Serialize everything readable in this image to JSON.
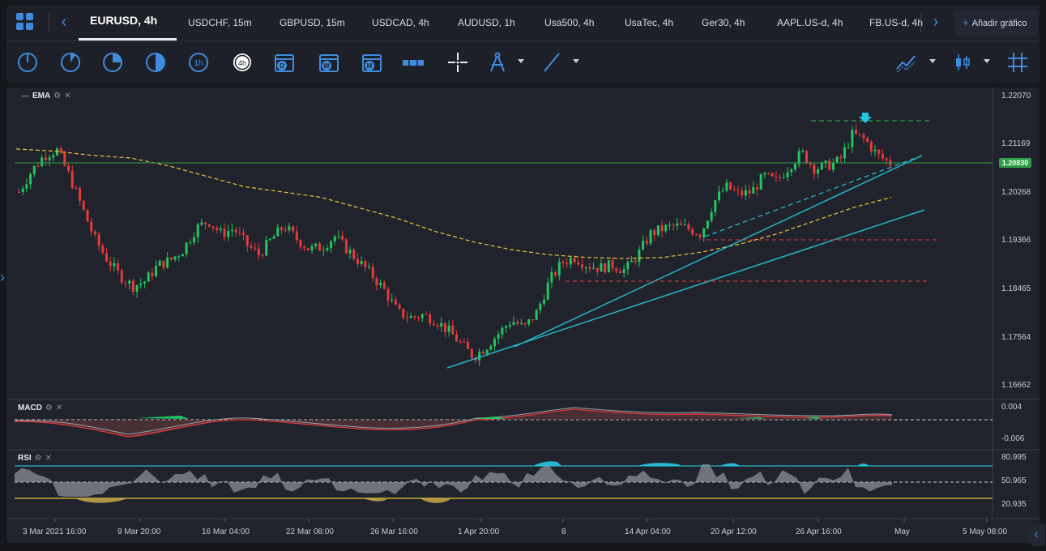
{
  "tabs": [
    {
      "label": "EURUSD, 4h",
      "active": true
    },
    {
      "label": "USDCHF, 15m"
    },
    {
      "label": "GBPUSD, 15m"
    },
    {
      "label": "USDCAD, 4h"
    },
    {
      "label": "AUDUSD, 1h"
    },
    {
      "label": "Usa500, 4h"
    },
    {
      "label": "UsaTec, 4h"
    },
    {
      "label": "Ger30, 4h"
    },
    {
      "label": "AAPL.US-d, 4h"
    },
    {
      "label": "FB.US-d, 4h"
    }
  ],
  "add_chart_label": "Añadir gráfico",
  "toolbar": {
    "timeframes": [
      "1m-icon",
      "5m-icon",
      "15m-icon",
      "30m-icon",
      "1h-icon",
      "4h-icon"
    ],
    "timeframe_text": [
      "1h",
      "4h"
    ],
    "period_icons": [
      {
        "name": "day-calendar-icon",
        "letter": "D"
      },
      {
        "name": "week-calendar-icon",
        "letter": "W"
      },
      {
        "name": "month-calendar-icon",
        "letter": "M"
      }
    ]
  },
  "indicators": {
    "ema": {
      "label": "EMA",
      "color": "#e8c63a"
    },
    "macd": {
      "label": "MACD"
    },
    "rsi": {
      "label": "RSI"
    }
  },
  "price_axis": [
    "1.22070",
    "1.21169",
    "1.20268",
    "1.19366",
    "1.18465",
    "1.17564",
    "1.16662"
  ],
  "current_price": "1.20830",
  "macd_axis": [
    "0.004",
    "-0.006"
  ],
  "rsi_axis": [
    "80.995",
    "50.965",
    "20.935"
  ],
  "time_axis": [
    "3 Mar 2021 16:00",
    "9 Mar 20:00",
    "16 Mar 04:00",
    "22 Mar 08:00",
    "26 Mar 16:00",
    "1 Apr 20:00",
    "8",
    "14 Apr 04:00",
    "20 Apr 12:00",
    "26 Apr 16:00",
    "May",
    "5 May 08:00"
  ],
  "colors": {
    "up": "#22c55e",
    "down": "#e23b3b",
    "trendline": "#27b5c8",
    "accent": "#3f8cdc"
  },
  "chart_data": {
    "type": "candlestick",
    "symbol": "EURUSD",
    "interval": "4h",
    "ylim": [
      1.166,
      1.2214
    ],
    "close_path": [
      1.203,
      1.207,
      1.21,
      1.211,
      1.206,
      1.2,
      1.194,
      1.19,
      1.187,
      1.185,
      1.186,
      1.189,
      1.19,
      1.192,
      1.196,
      1.1975,
      1.195,
      1.196,
      1.193,
      1.191,
      1.194,
      1.1965,
      1.194,
      1.192,
      1.1925,
      1.1945,
      1.192,
      1.1895,
      1.187,
      1.184,
      1.18,
      1.179,
      1.1795,
      1.1785,
      1.1765,
      1.174,
      1.1715,
      1.1735,
      1.176,
      1.1785,
      1.177,
      1.18,
      1.186,
      1.1895,
      1.1905,
      1.189,
      1.1885,
      1.189,
      1.188,
      1.191,
      1.195,
      1.196,
      1.1965,
      1.196,
      1.195,
      1.201,
      1.204,
      1.2025,
      1.203,
      1.206,
      1.205,
      1.208,
      1.2105,
      1.2075,
      1.208,
      1.209,
      1.214,
      1.213,
      1.21,
      1.2085
    ],
    "ema_path": [
      1.2112,
      1.2108,
      1.21,
      1.2095,
      1.208,
      1.206,
      1.204,
      1.203,
      1.202,
      1.2,
      1.198,
      1.1955,
      1.1935,
      1.192,
      1.191,
      1.1905,
      1.1903,
      1.1905,
      1.1915,
      1.193,
      1.195,
      1.1975,
      1.2,
      1.202
    ],
    "annotations": [
      "ascending trendline",
      "horizontal resistance levels",
      "current price line"
    ]
  }
}
